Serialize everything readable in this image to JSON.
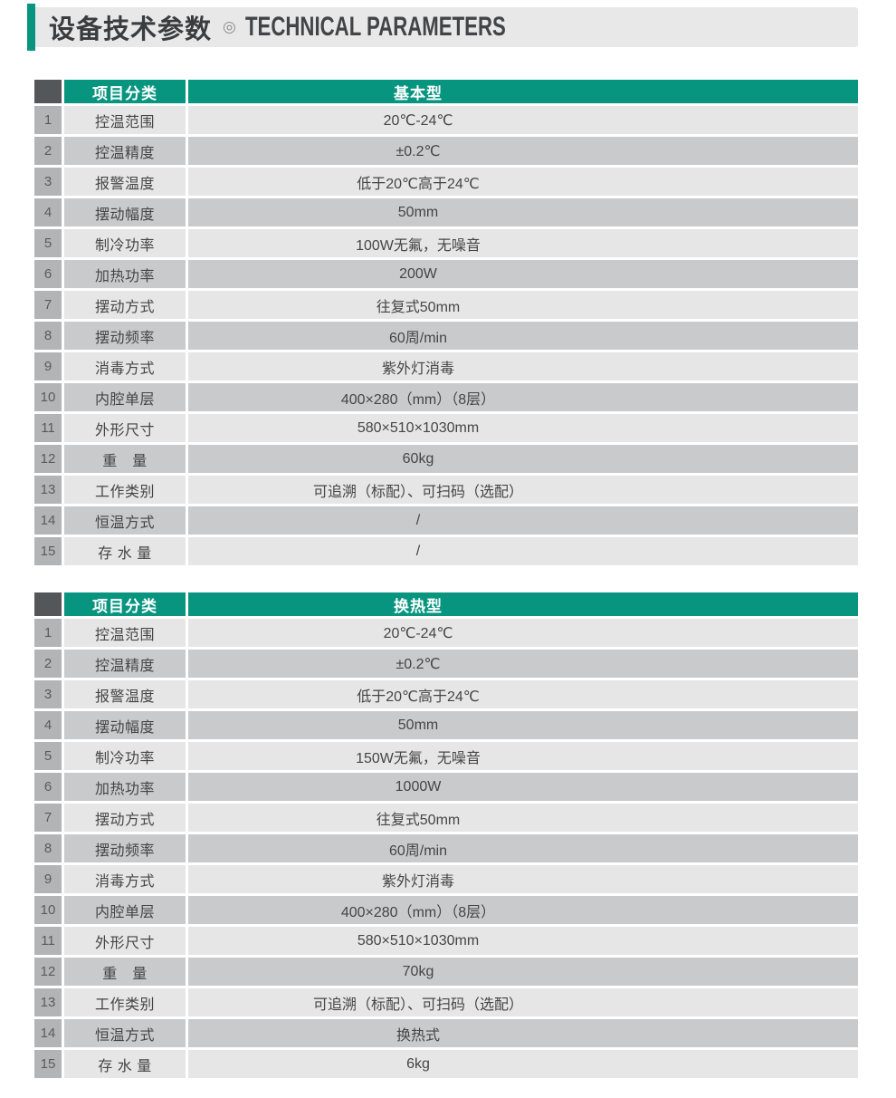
{
  "title": {
    "zh": "设备技术参数",
    "marker": "◎",
    "en": "TECHNICAL PARAMETERS"
  },
  "colors": {
    "accent_teal": "#089580",
    "header_corner_gray": "#54575a",
    "number_cell_gray": "#b3b4b6",
    "row_odd_bg": "#e6e6e7",
    "row_even_bg": "#c9cacc",
    "title_bar_bg": "#e8e8e9",
    "header_text": "#ffffff",
    "body_text": "#454545"
  },
  "tables": [
    {
      "name": "basic-model",
      "header": {
        "category": "项目分类",
        "model": "基本型"
      },
      "rows": [
        {
          "no": "1",
          "label": "控温范围",
          "value": "20℃-24℃"
        },
        {
          "no": "2",
          "label": "控温精度",
          "value": "±0.2℃"
        },
        {
          "no": "3",
          "label": "报警温度",
          "value": "低于20℃高于24℃"
        },
        {
          "no": "4",
          "label": "摆动幅度",
          "value": "50mm"
        },
        {
          "no": "5",
          "label": "制冷功率",
          "value": "100W无氟，无噪音"
        },
        {
          "no": "6",
          "label": "加热功率",
          "value": "200W"
        },
        {
          "no": "7",
          "label": "摆动方式",
          "value": "往复式50mm"
        },
        {
          "no": "8",
          "label": "摆动频率",
          "value": "60周/min"
        },
        {
          "no": "9",
          "label": "消毒方式",
          "value": "紫外灯消毒"
        },
        {
          "no": "10",
          "label": "内腔单层",
          "value": "400×280（mm）（8层）"
        },
        {
          "no": "11",
          "label": "外形尺寸",
          "value": "580×510×1030mm"
        },
        {
          "no": "12",
          "label": "重　量",
          "value": "60kg"
        },
        {
          "no": "13",
          "label": "工作类别",
          "value": "可追溯（标配）、可扫码（选配）"
        },
        {
          "no": "14",
          "label": "恒温方式",
          "value": "/"
        },
        {
          "no": "15",
          "label": "存 水 量",
          "value": "/"
        }
      ]
    },
    {
      "name": "heat-exchange-model",
      "header": {
        "category": "项目分类",
        "model": "换热型"
      },
      "rows": [
        {
          "no": "1",
          "label": "控温范围",
          "value": "20℃-24℃"
        },
        {
          "no": "2",
          "label": "控温精度",
          "value": "±0.2℃"
        },
        {
          "no": "3",
          "label": "报警温度",
          "value": "低于20℃高于24℃"
        },
        {
          "no": "4",
          "label": "摆动幅度",
          "value": "50mm"
        },
        {
          "no": "5",
          "label": "制冷功率",
          "value": "150W无氟，无噪音"
        },
        {
          "no": "6",
          "label": "加热功率",
          "value": "1000W"
        },
        {
          "no": "7",
          "label": "摆动方式",
          "value": "往复式50mm"
        },
        {
          "no": "8",
          "label": "摆动频率",
          "value": "60周/min"
        },
        {
          "no": "9",
          "label": "消毒方式",
          "value": "紫外灯消毒"
        },
        {
          "no": "10",
          "label": "内腔单层",
          "value": "400×280（mm）（8层）"
        },
        {
          "no": "11",
          "label": "外形尺寸",
          "value": "580×510×1030mm"
        },
        {
          "no": "12",
          "label": "重　量",
          "value": "70kg"
        },
        {
          "no": "13",
          "label": "工作类别",
          "value": "可追溯（标配）、可扫码（选配）"
        },
        {
          "no": "14",
          "label": "恒温方式",
          "value": "换热式"
        },
        {
          "no": "15",
          "label": "存 水 量",
          "value": "6kg"
        }
      ]
    }
  ]
}
